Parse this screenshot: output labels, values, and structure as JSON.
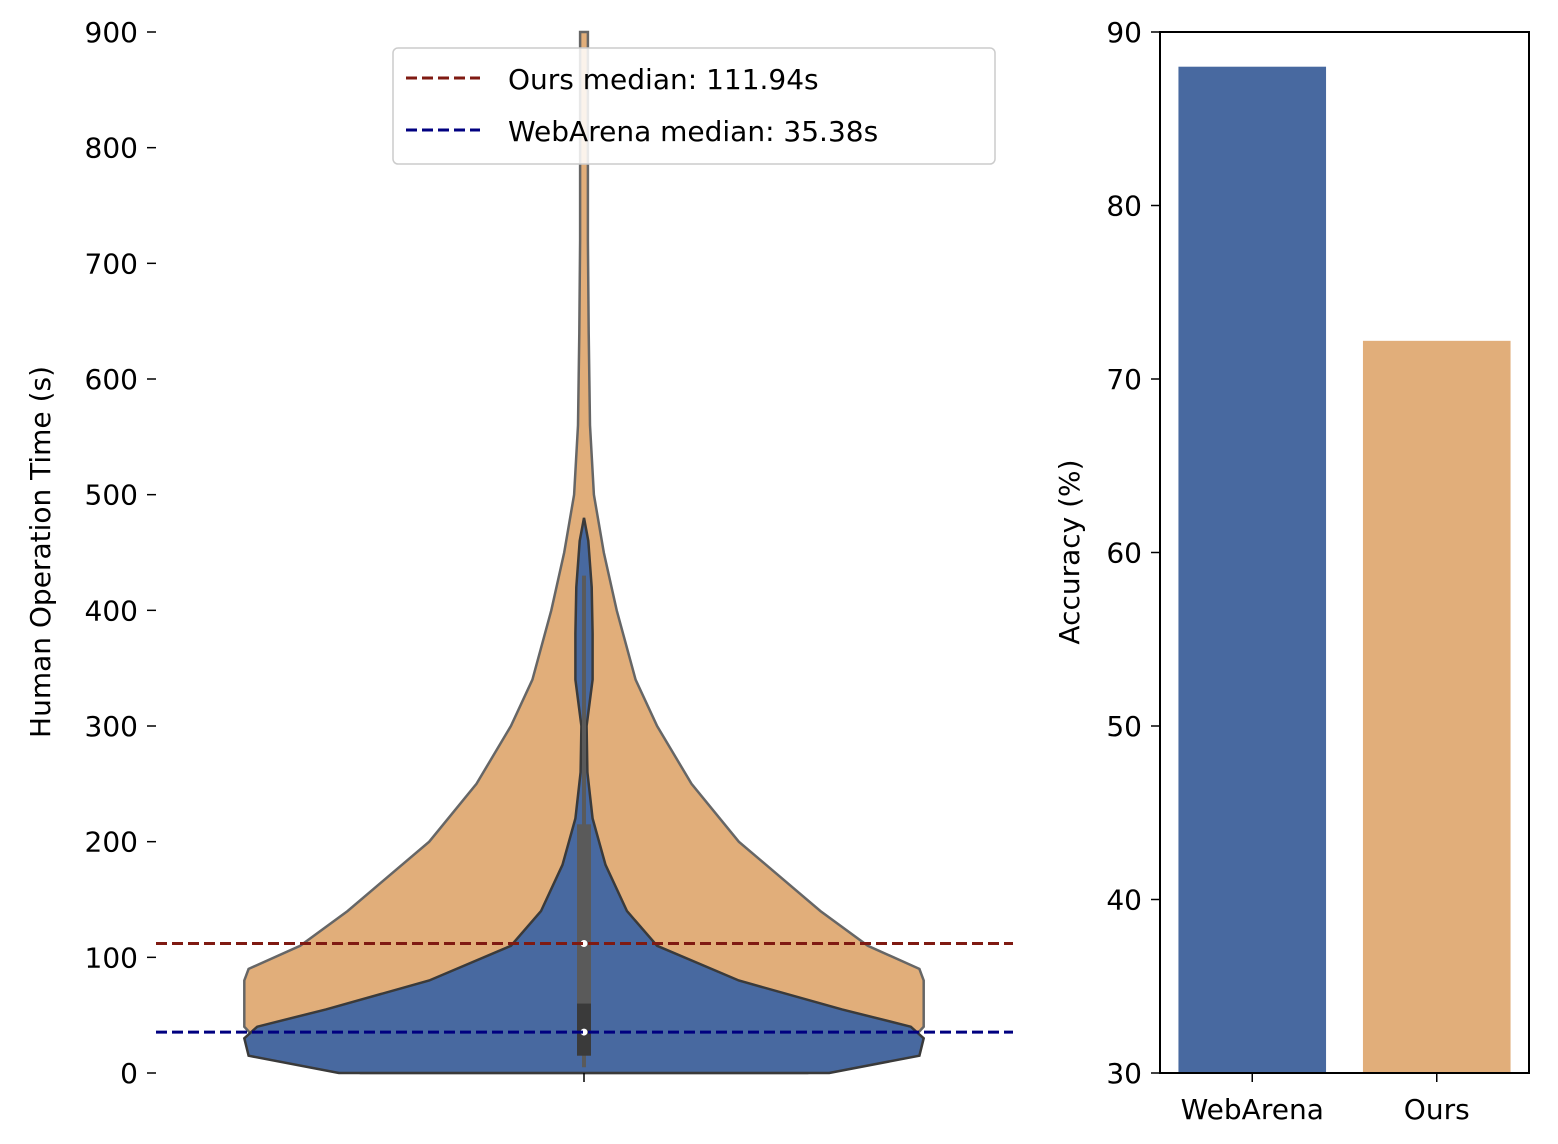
{
  "chart_data": [
    {
      "type": "violin",
      "ylabel": "Human Operation Time (s)",
      "ylim": [
        0,
        900
      ],
      "yticks": [
        0,
        100,
        200,
        300,
        400,
        500,
        600,
        700,
        800,
        900
      ],
      "tick_labels": [
        "0",
        "100",
        "200",
        "300",
        "400",
        "500",
        "600",
        "700",
        "800",
        "900"
      ],
      "series": [
        {
          "name": "Ours",
          "color": "#e1ae7a",
          "max": 900,
          "profile": [
            [
              0,
              0.52
            ],
            [
              20,
              0.74
            ],
            [
              40,
              0.79
            ],
            [
              60,
              0.79
            ],
            [
              80,
              0.79
            ],
            [
              90,
              0.78
            ],
            [
              110,
              0.66
            ],
            [
              140,
              0.55
            ],
            [
              200,
              0.36
            ],
            [
              250,
              0.25
            ],
            [
              300,
              0.17
            ],
            [
              340,
              0.12
            ],
            [
              400,
              0.076
            ],
            [
              450,
              0.046
            ],
            [
              500,
              0.023
            ],
            [
              560,
              0.014
            ],
            [
              640,
              0.011
            ],
            [
              720,
              0.009
            ],
            [
              900,
              0.009
            ]
          ],
          "median": 111.94,
          "median_label": "Ours median: 111.94s",
          "median_color": "#7f1a12"
        },
        {
          "name": "WebArena",
          "color": "#4869a0",
          "min": 0,
          "max": 480,
          "profile": [
            [
              0,
              0.57
            ],
            [
              15,
              0.78
            ],
            [
              30,
              0.79
            ],
            [
              40,
              0.76
            ],
            [
              55,
              0.6
            ],
            [
              80,
              0.36
            ],
            [
              110,
              0.17
            ],
            [
              140,
              0.1
            ],
            [
              180,
              0.05
            ],
            [
              220,
              0.02
            ],
            [
              260,
              0.008
            ],
            [
              300,
              0.006
            ],
            [
              340,
              0.02
            ],
            [
              380,
              0.02
            ],
            [
              420,
              0.018
            ],
            [
              460,
              0.01
            ],
            [
              480,
              0
            ]
          ],
          "median": 35.38,
          "median_label": "WebArena median: 35.38s",
          "median_color": "#000080"
        }
      ],
      "boxplot": {
        "q1": 15,
        "q3": 215,
        "whisker_low": 5,
        "whisker_high": 430
      },
      "legend_position": "top-center"
    },
    {
      "type": "bar",
      "categories": [
        "WebArena",
        "Ours"
      ],
      "values": [
        88.0,
        72.2
      ],
      "colors": [
        "#4869a0",
        "#e1ae7a"
      ],
      "ylabel": "Accuracy (%)",
      "ylim": [
        30,
        90
      ],
      "yticks": [
        30,
        40,
        50,
        60,
        70,
        80,
        90
      ],
      "tick_labels": [
        "30",
        "40",
        "50",
        "60",
        "70",
        "80",
        "90"
      ]
    }
  ]
}
